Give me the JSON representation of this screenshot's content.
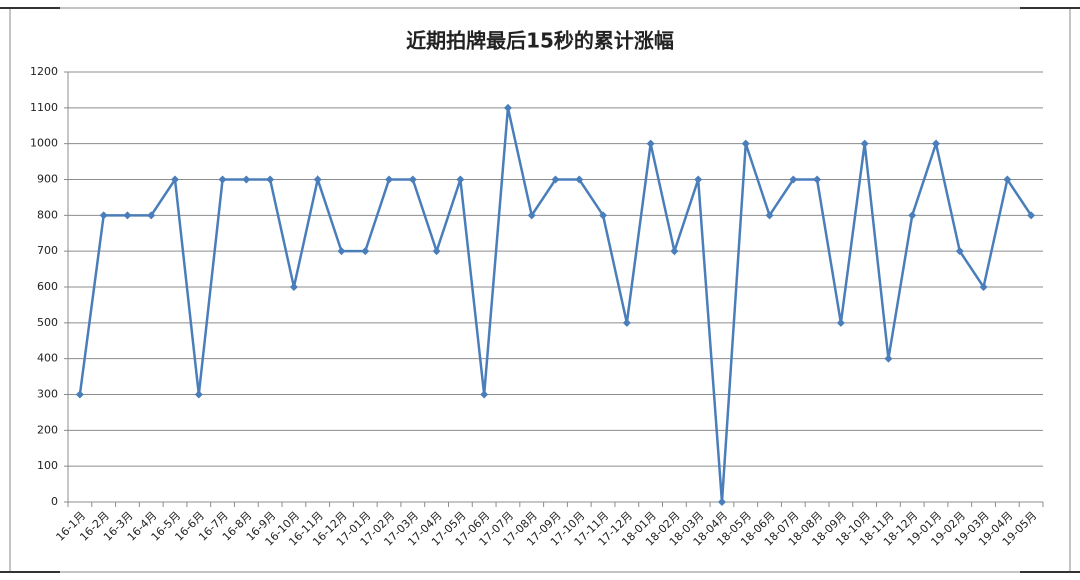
{
  "chart_data": {
    "type": "line",
    "title": "近期拍牌最后15秒的累计涨幅",
    "categories": [
      "16-1月",
      "16-2月",
      "16-3月",
      "16-4月",
      "16-5月",
      "16-6月",
      "16-7月",
      "16-8月",
      "16-9月",
      "16-10月",
      "16-11月",
      "16-12月",
      "17-01月",
      "17-02月",
      "17-03月",
      "17-04月",
      "17-05月",
      "17-06月",
      "17-07月",
      "17-08月",
      "17-09月",
      "17-10月",
      "17-11月",
      "17-12月",
      "18-01月",
      "18-02月",
      "18-03月",
      "18-04月",
      "18-05月",
      "18-06月",
      "18-07月",
      "18-08月",
      "18-09月",
      "18-10月",
      "18-11月",
      "18-12月",
      "19-01月",
      "19-02月",
      "19-03月",
      "19-04月",
      "19-05月"
    ],
    "series": [
      {
        "color": "#4a7ebb",
        "values": [
          300,
          800,
          800,
          800,
          900,
          300,
          900,
          900,
          900,
          600,
          900,
          700,
          700,
          900,
          900,
          700,
          900,
          300,
          1100,
          800,
          900,
          900,
          800,
          500,
          1000,
          700,
          900,
          0,
          1000,
          800,
          900,
          900,
          500,
          1000,
          400,
          800,
          1000,
          700,
          600,
          900,
          800
        ]
      }
    ],
    "ylim": [
      0,
      1200
    ],
    "yticks": [
      0,
      100,
      200,
      300,
      400,
      500,
      600,
      700,
      800,
      900,
      1000,
      1100,
      1200
    ],
    "grid": true
  }
}
